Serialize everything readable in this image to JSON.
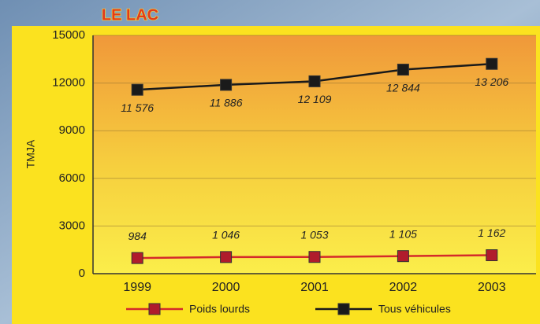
{
  "chart_data": {
    "type": "line",
    "title": "LE LAC",
    "y_label": "TMJA",
    "categories": [
      "1999",
      "2000",
      "2001",
      "2002",
      "2003"
    ],
    "series": [
      {
        "name": "Poids lourds",
        "color": "#d42a2a",
        "marker_color": "#b01c2c",
        "values": [
          984,
          1046,
          1053,
          1105,
          1162
        ],
        "value_labels": [
          "984",
          "1 046",
          "1 053",
          "1 105",
          "1 162"
        ]
      },
      {
        "name": "Tous véhicules",
        "color": "#1a1a1a",
        "marker_color": "#1a1a1a",
        "values": [
          11576,
          11886,
          12109,
          12844,
          13206
        ],
        "value_labels": [
          "11 576",
          "11 886",
          "12 109",
          "12 844",
          "13 206"
        ]
      }
    ],
    "ylim": [
      0,
      15000
    ],
    "yticks": [
      0,
      3000,
      6000,
      9000,
      12000,
      15000
    ],
    "grid": true
  }
}
